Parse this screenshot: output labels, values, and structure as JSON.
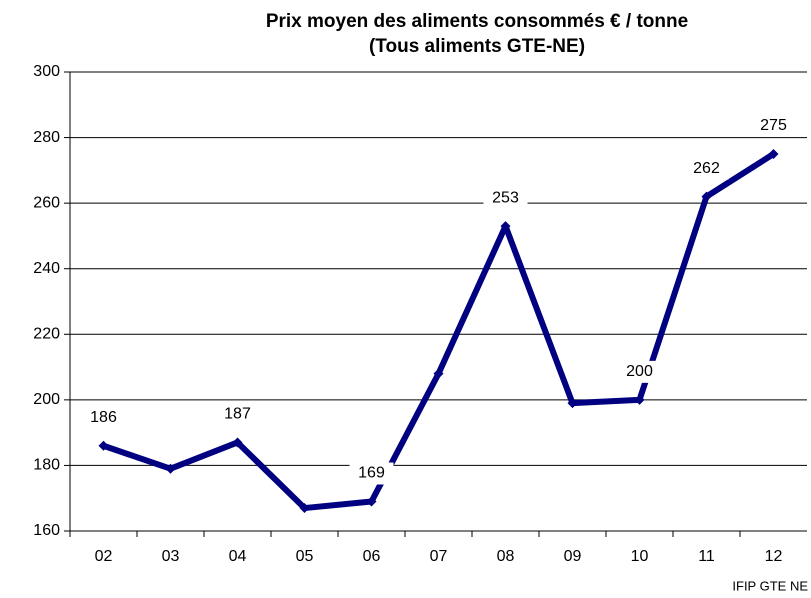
{
  "chart_data": {
    "type": "line",
    "title": [
      "Prix moyen des aliments consommés € / tonne",
      "(Tous aliments GTE-NE)"
    ],
    "source": "IFIP GTE NE",
    "categories": [
      "02",
      "03",
      "04",
      "05",
      "06",
      "07",
      "08",
      "09",
      "10",
      "11",
      "12"
    ],
    "series": [
      {
        "color": "#000080",
        "values": [
          186,
          179,
          187,
          167,
          169,
          208,
          253,
          199,
          200,
          262,
          275
        ],
        "value_labels": [
          "186",
          null,
          "187",
          null,
          "169",
          null,
          "253",
          null,
          "200",
          "262",
          "275"
        ]
      }
    ],
    "ylim": [
      160,
      300
    ],
    "yticks": [
      160,
      180,
      200,
      220,
      240,
      260,
      280,
      300
    ],
    "grid": true
  }
}
